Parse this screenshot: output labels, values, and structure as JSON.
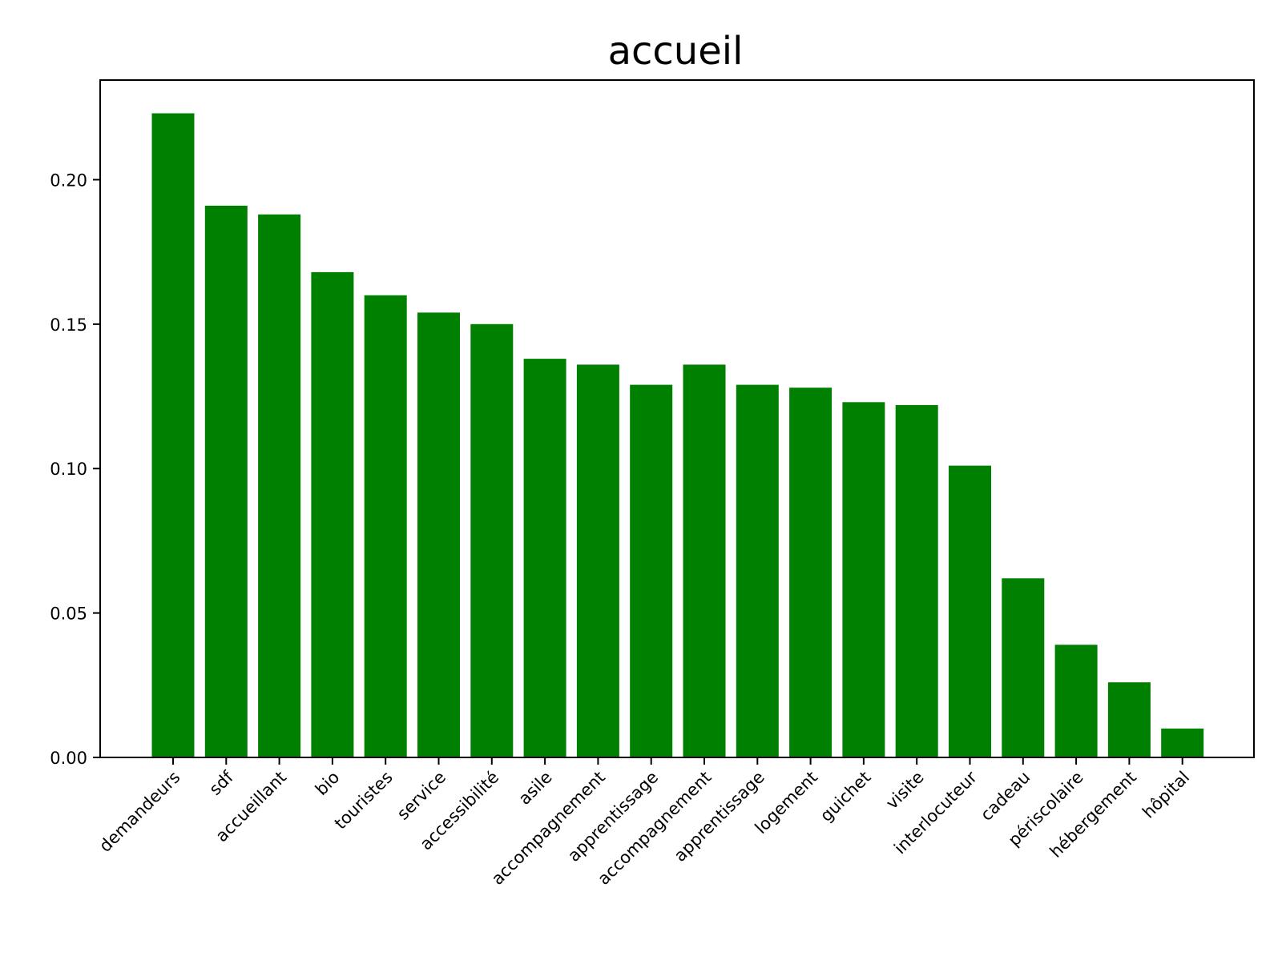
{
  "chart_data": {
    "type": "bar",
    "title": "accueil",
    "xlabel": "",
    "ylabel": "",
    "categories": [
      "demandeurs",
      "sdf",
      "accueillant",
      "bio",
      "touristes",
      "service",
      "accessibilité",
      "asile",
      "accompagnement",
      "apprentissage",
      "accompagnement",
      "apprentissage",
      "logement",
      "guichet",
      "visite",
      "interlocuteur",
      "cadeau",
      "périscolaire",
      "hébergement",
      "hôpital"
    ],
    "values": [
      0.223,
      0.191,
      0.188,
      0.168,
      0.16,
      0.154,
      0.15,
      0.138,
      0.136,
      0.129,
      0.136,
      0.129,
      0.128,
      0.123,
      0.122,
      0.101,
      0.062,
      0.039,
      0.026,
      0.01
    ],
    "ylim": [
      0,
      0.2345
    ],
    "yticks": [
      0.0,
      0.05,
      0.1,
      0.15,
      0.2
    ],
    "ytick_labels": [
      "0.00",
      "0.05",
      "0.10",
      "0.15",
      "0.20"
    ],
    "grid": false,
    "colors": {
      "bar": "#008000",
      "axis": "#000000",
      "background": "#ffffff"
    }
  }
}
